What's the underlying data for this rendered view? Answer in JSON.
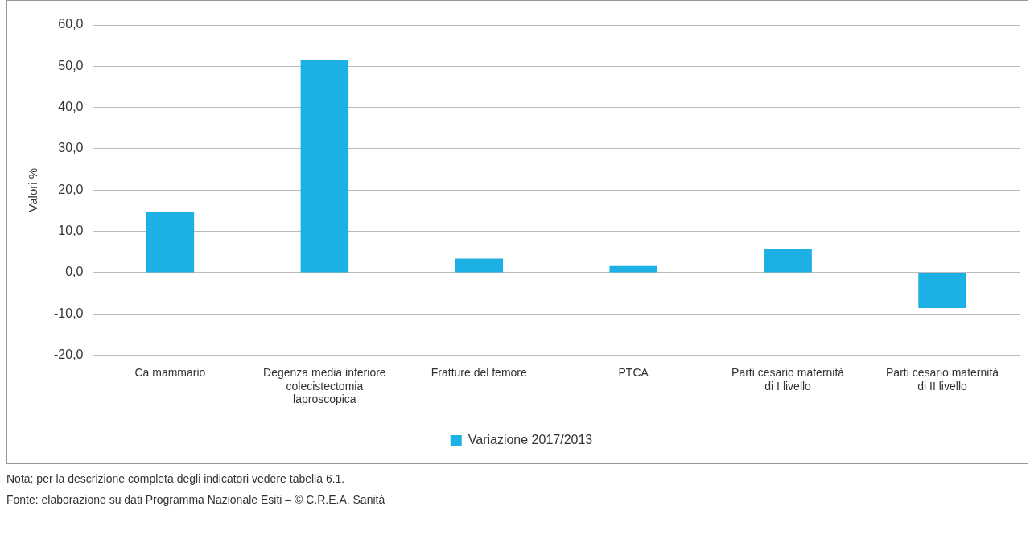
{
  "chart_data": {
    "type": "bar",
    "ylabel": "Valori %",
    "categories": [
      "Ca mammario",
      "Degenza media inferiore colecistectomia laproscopica",
      "Fratture del femore",
      "PTCA",
      "Parti cesario maternità di I livello",
      "Parti cesario maternità di II livello"
    ],
    "series": [
      {
        "name": "Variazione 2017/2013",
        "color": "#1cb0e4",
        "values": [
          14.6,
          51.5,
          3.4,
          1.6,
          5.8,
          -8.6
        ]
      }
    ],
    "ylim": [
      -20,
      60
    ],
    "yticks": [
      {
        "value": -20,
        "label": "-20,0"
      },
      {
        "value": -10,
        "label": "-10,0"
      },
      {
        "value": 0,
        "label": "0,0"
      },
      {
        "value": 10,
        "label": "10,0"
      },
      {
        "value": 20,
        "label": "20,0"
      },
      {
        "value": 30,
        "label": "30,0"
      },
      {
        "value": 40,
        "label": "40,0"
      },
      {
        "value": 50,
        "label": "50,0"
      },
      {
        "value": 60,
        "label": "60,0"
      }
    ],
    "grid": "y",
    "legend": "bottom",
    "annotations": [
      "Nota: per la descrizione completa degli indicatori vedere tabella 6.1.",
      "Fonte: elaborazione su dati Programma Nazionale Esiti – © C.R.E.A. Sanità"
    ]
  }
}
